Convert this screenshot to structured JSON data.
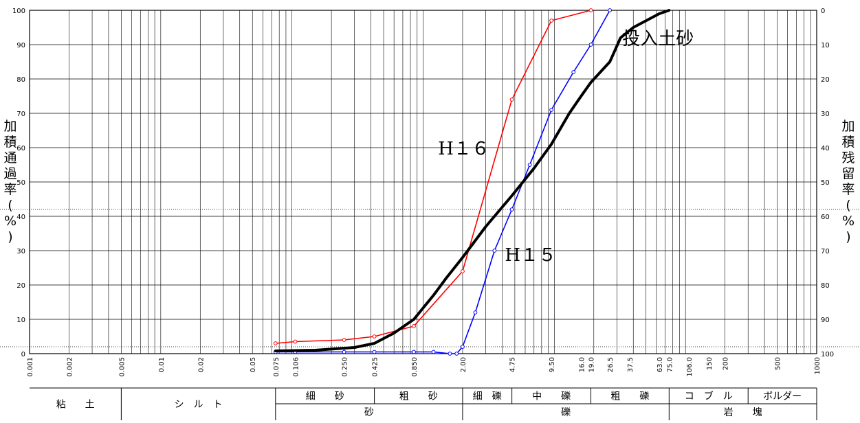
{
  "chart_data": {
    "type": "line",
    "x_scale": "log",
    "xlim": [
      0.001,
      1000
    ],
    "ylim": [
      0,
      100
    ],
    "ylabel_left": "加積通過率(%)",
    "ylabel_right": "加積残留率(%)",
    "yticks_left": [
      "0",
      "10",
      "20",
      "30",
      "40",
      "50",
      "60",
      "70",
      "80",
      "90",
      "100"
    ],
    "yticks_right": [
      "100",
      "90",
      "80",
      "70",
      "60",
      "50",
      "40",
      "30",
      "20",
      "10",
      "0"
    ],
    "xticks": [
      {
        "v": 0.001,
        "label": "0.001"
      },
      {
        "v": 0.002,
        "label": "0.002"
      },
      {
        "v": 0.005,
        "label": "0.005"
      },
      {
        "v": 0.01,
        "label": "0.01"
      },
      {
        "v": 0.02,
        "label": "0.02"
      },
      {
        "v": 0.05,
        "label": "0.05"
      },
      {
        "v": 0.075,
        "label": "0.075"
      },
      {
        "v": 0.106,
        "label": "0.106"
      },
      {
        "v": 0.25,
        "label": "0.250"
      },
      {
        "v": 0.425,
        "label": "0.425"
      },
      {
        "v": 0.85,
        "label": "0.850"
      },
      {
        "v": 2.0,
        "label": "2.00"
      },
      {
        "v": 4.75,
        "label": "4.75"
      },
      {
        "v": 9.5,
        "label": "9.50"
      },
      {
        "v": 16.0,
        "label": "16.0"
      },
      {
        "v": 19.0,
        "label": "19.0"
      },
      {
        "v": 26.5,
        "label": "26.5"
      },
      {
        "v": 37.5,
        "label": "37.5"
      },
      {
        "v": 63.0,
        "label": "63.0"
      },
      {
        "v": 75.0,
        "label": "75.0"
      },
      {
        "v": 106.0,
        "label": "106.0"
      },
      {
        "v": 150,
        "label": "150"
      },
      {
        "v": 200,
        "label": "200"
      },
      {
        "v": 500,
        "label": "500"
      },
      {
        "v": 1000,
        "label": "1000"
      }
    ],
    "dotted_lines_y": [
      2,
      42
    ],
    "series": [
      {
        "name": "H16",
        "color": "#ff0000",
        "markers": true,
        "points": [
          [
            0.075,
            3
          ],
          [
            0.106,
            3.5
          ],
          [
            0.25,
            4
          ],
          [
            0.425,
            5
          ],
          [
            0.85,
            8
          ],
          [
            2.0,
            24
          ],
          [
            4.75,
            74
          ],
          [
            9.5,
            97
          ],
          [
            19.0,
            100
          ]
        ]
      },
      {
        "name": "H15",
        "color": "#0000ff",
        "markers": true,
        "points": [
          [
            0.075,
            0.5
          ],
          [
            0.106,
            0.5
          ],
          [
            0.25,
            0.5
          ],
          [
            0.425,
            0.5
          ],
          [
            0.85,
            0.5
          ],
          [
            1.2,
            0.5
          ],
          [
            1.6,
            0
          ],
          [
            1.8,
            0
          ],
          [
            2.0,
            2
          ],
          [
            2.5,
            12
          ],
          [
            3.5,
            30
          ],
          [
            4.75,
            42
          ],
          [
            6.5,
            55
          ],
          [
            9.5,
            71
          ],
          [
            14,
            82
          ],
          [
            19.0,
            90
          ],
          [
            26.5,
            100
          ]
        ]
      },
      {
        "name": "投入土砂",
        "color": "#000000",
        "markers": false,
        "points": [
          [
            0.075,
            0.8
          ],
          [
            0.15,
            1
          ],
          [
            0.3,
            1.8
          ],
          [
            0.425,
            3
          ],
          [
            0.6,
            6
          ],
          [
            0.85,
            10
          ],
          [
            1.2,
            17
          ],
          [
            1.5,
            22
          ],
          [
            2.0,
            28
          ],
          [
            3.0,
            37
          ],
          [
            4.75,
            46
          ],
          [
            7.0,
            54
          ],
          [
            9.5,
            61
          ],
          [
            13,
            70
          ],
          [
            16.0,
            75
          ],
          [
            19.0,
            79
          ],
          [
            26.5,
            85
          ],
          [
            32,
            92
          ],
          [
            40,
            95
          ],
          [
            63.0,
            99
          ],
          [
            75.0,
            100
          ]
        ]
      }
    ],
    "annotations": [
      {
        "text": "H16",
        "display": "H１６",
        "x": 1.3,
        "y": 58
      },
      {
        "text": "H15",
        "display": "H１５",
        "x": 4.2,
        "y": 27
      },
      {
        "text": "投入土砂",
        "display": "投入土砂",
        "x": 33,
        "y": 90
      }
    ]
  },
  "classification": {
    "row1": [
      {
        "label": "粘　　土",
        "from": 0.001,
        "to": 0.005
      },
      {
        "label": "シ　ル　ト",
        "from": 0.005,
        "to": 0.075
      },
      {
        "label": "細　　砂",
        "from": 0.075,
        "to": 0.425
      },
      {
        "label": "粗　　砂",
        "from": 0.425,
        "to": 2.0
      },
      {
        "label": "細　礫",
        "from": 2.0,
        "to": 4.75
      },
      {
        "label": "中　　礫",
        "from": 4.75,
        "to": 19.0
      },
      {
        "label": "粗　　礫",
        "from": 19.0,
        "to": 75.0
      },
      {
        "label": "コ　ブ　ル",
        "from": 75.0,
        "to": 300
      },
      {
        "label": "ボルダー",
        "from": 300,
        "to": 1000
      }
    ],
    "row2": [
      {
        "label": "砂",
        "from": 0.075,
        "to": 2.0
      },
      {
        "label": "礫",
        "from": 2.0,
        "to": 75.0
      },
      {
        "label": "岩　　塊",
        "from": 75.0,
        "to": 1000
      }
    ]
  }
}
